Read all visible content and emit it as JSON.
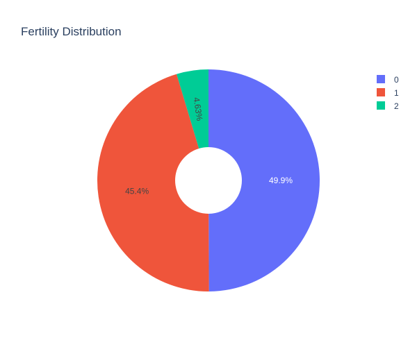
{
  "chart_data": {
    "type": "pie",
    "title": "Fertility Distribution",
    "hole": 0.3,
    "legend_position": "top-right",
    "slices": [
      {
        "label": "0",
        "value": 49.9,
        "text": "49.9%",
        "color": "#636efa",
        "text_color": "#ffffff"
      },
      {
        "label": "1",
        "value": 45.4,
        "text": "45.4%",
        "color": "#ef553b",
        "text_color": "#444444"
      },
      {
        "label": "2",
        "value": 4.63,
        "text": "4.63%",
        "color": "#00cc96",
        "text_color": "#444444"
      }
    ],
    "legend": [
      {
        "label": "0",
        "color": "#636efa"
      },
      {
        "label": "1",
        "color": "#ef553b"
      },
      {
        "label": "2",
        "color": "#00cc96"
      }
    ]
  }
}
